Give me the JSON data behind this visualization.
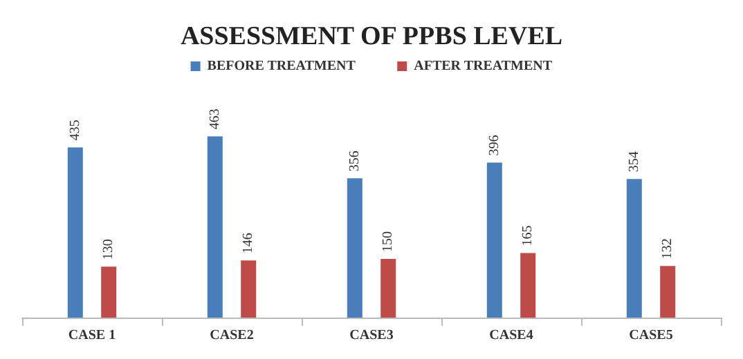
{
  "chart_data": {
    "type": "bar",
    "title": "ASSESSMENT OF PPBS LEVEL",
    "categories": [
      "CASE 1",
      "CASE2",
      "CASE3",
      "CASE4",
      "CASE5"
    ],
    "series": [
      {
        "name": "BEFORE TREATMENT",
        "color": "#4a7ebb",
        "values": [
          435,
          463,
          356,
          396,
          354
        ]
      },
      {
        "name": "AFTER TREATMENT",
        "color": "#be4b48",
        "values": [
          130,
          146,
          150,
          165,
          132
        ]
      }
    ],
    "data_labels": true,
    "legend": "top",
    "grid": false
  }
}
